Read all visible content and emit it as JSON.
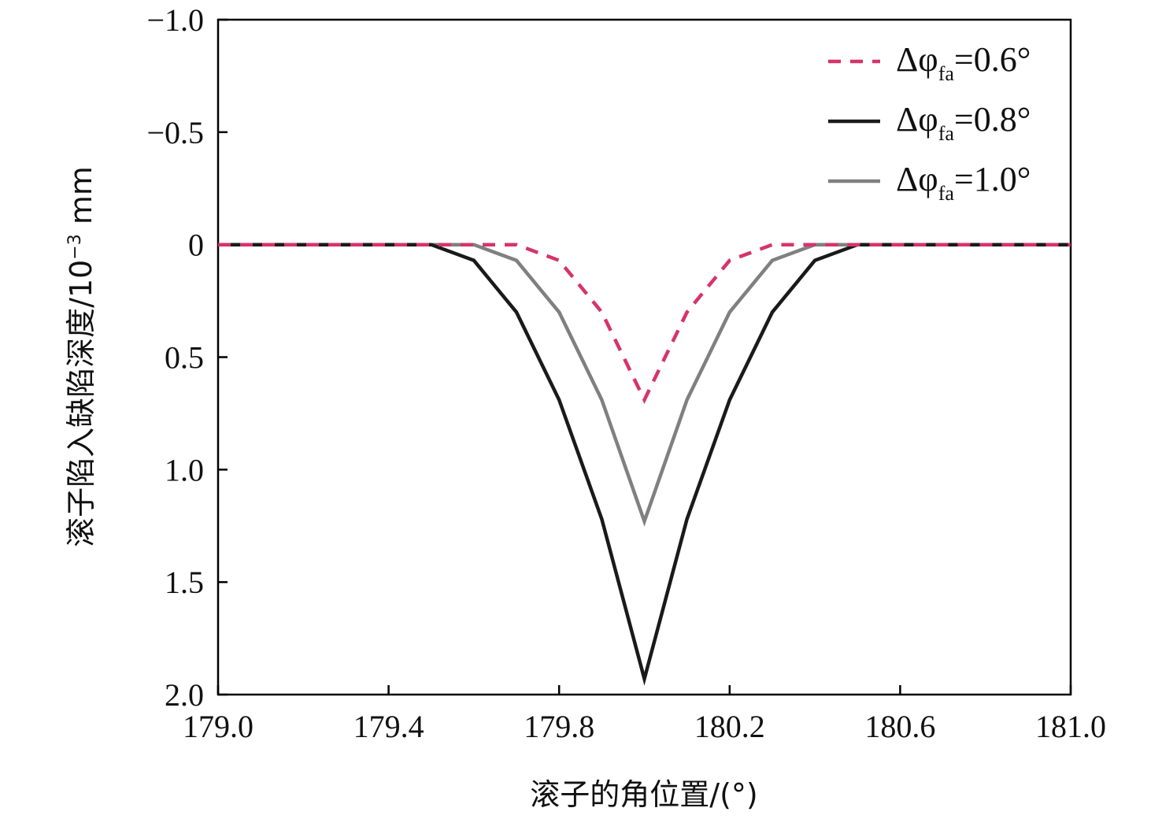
{
  "chart_data": {
    "type": "line",
    "xlabel": "滚子的角位置/(°)",
    "ylabel_main": "滚子陷入缺陷深度/10",
    "ylabel_exp": "−3",
    "ylabel_unit": " mm",
    "xlim": [
      179.0,
      181.0
    ],
    "ylim": [
      -1.0,
      2.0
    ],
    "y_inverted": true,
    "x_ticks": [
      179.0,
      179.4,
      179.8,
      180.2,
      180.6,
      181.0
    ],
    "x_tick_labels": [
      "179.0",
      "179.4",
      "179.8",
      "180.2",
      "180.6",
      "181.0"
    ],
    "y_ticks": [
      -1.0,
      -0.5,
      0,
      0.5,
      1.0,
      1.5,
      2.0
    ],
    "y_tick_labels": [
      "−1.0",
      "−0.5",
      "0",
      "0.5",
      "1.0",
      "1.5",
      "2.0"
    ],
    "grid": false,
    "legend_position": "top-right",
    "series": [
      {
        "legend_prefix": "Δφ",
        "legend_sub": "fa",
        "legend_value": "=0.6°",
        "color": "#d6336c",
        "dash": "dashed",
        "x": [
          179.0,
          179.7,
          179.8,
          179.9,
          180.0,
          180.1,
          180.2,
          180.3,
          181.0
        ],
        "y": [
          0,
          0,
          0.07,
          0.3,
          0.69,
          0.3,
          0.07,
          0,
          0
        ]
      },
      {
        "legend_prefix": "Δφ",
        "legend_sub": "fa",
        "legend_value": "=0.8°",
        "color": "#1a1a1a",
        "dash": "solid",
        "x": [
          179.0,
          179.5,
          179.6,
          179.7,
          179.8,
          179.9,
          180.0,
          180.1,
          180.2,
          180.3,
          180.4,
          180.5,
          181.0
        ],
        "y": [
          0,
          0,
          0.07,
          0.3,
          0.69,
          1.22,
          1.93,
          1.22,
          0.69,
          0.3,
          0.07,
          0,
          0
        ]
      },
      {
        "legend_prefix": "Δφ",
        "legend_sub": "fa",
        "legend_value": "=1.0°",
        "color": "#808080",
        "dash": "solid",
        "x": [
          179.0,
          179.6,
          179.7,
          179.8,
          179.9,
          180.0,
          180.1,
          180.2,
          180.3,
          180.4,
          181.0
        ],
        "y": [
          0,
          0,
          0.07,
          0.3,
          0.69,
          1.23,
          0.69,
          0.3,
          0.07,
          0,
          0
        ]
      }
    ]
  }
}
